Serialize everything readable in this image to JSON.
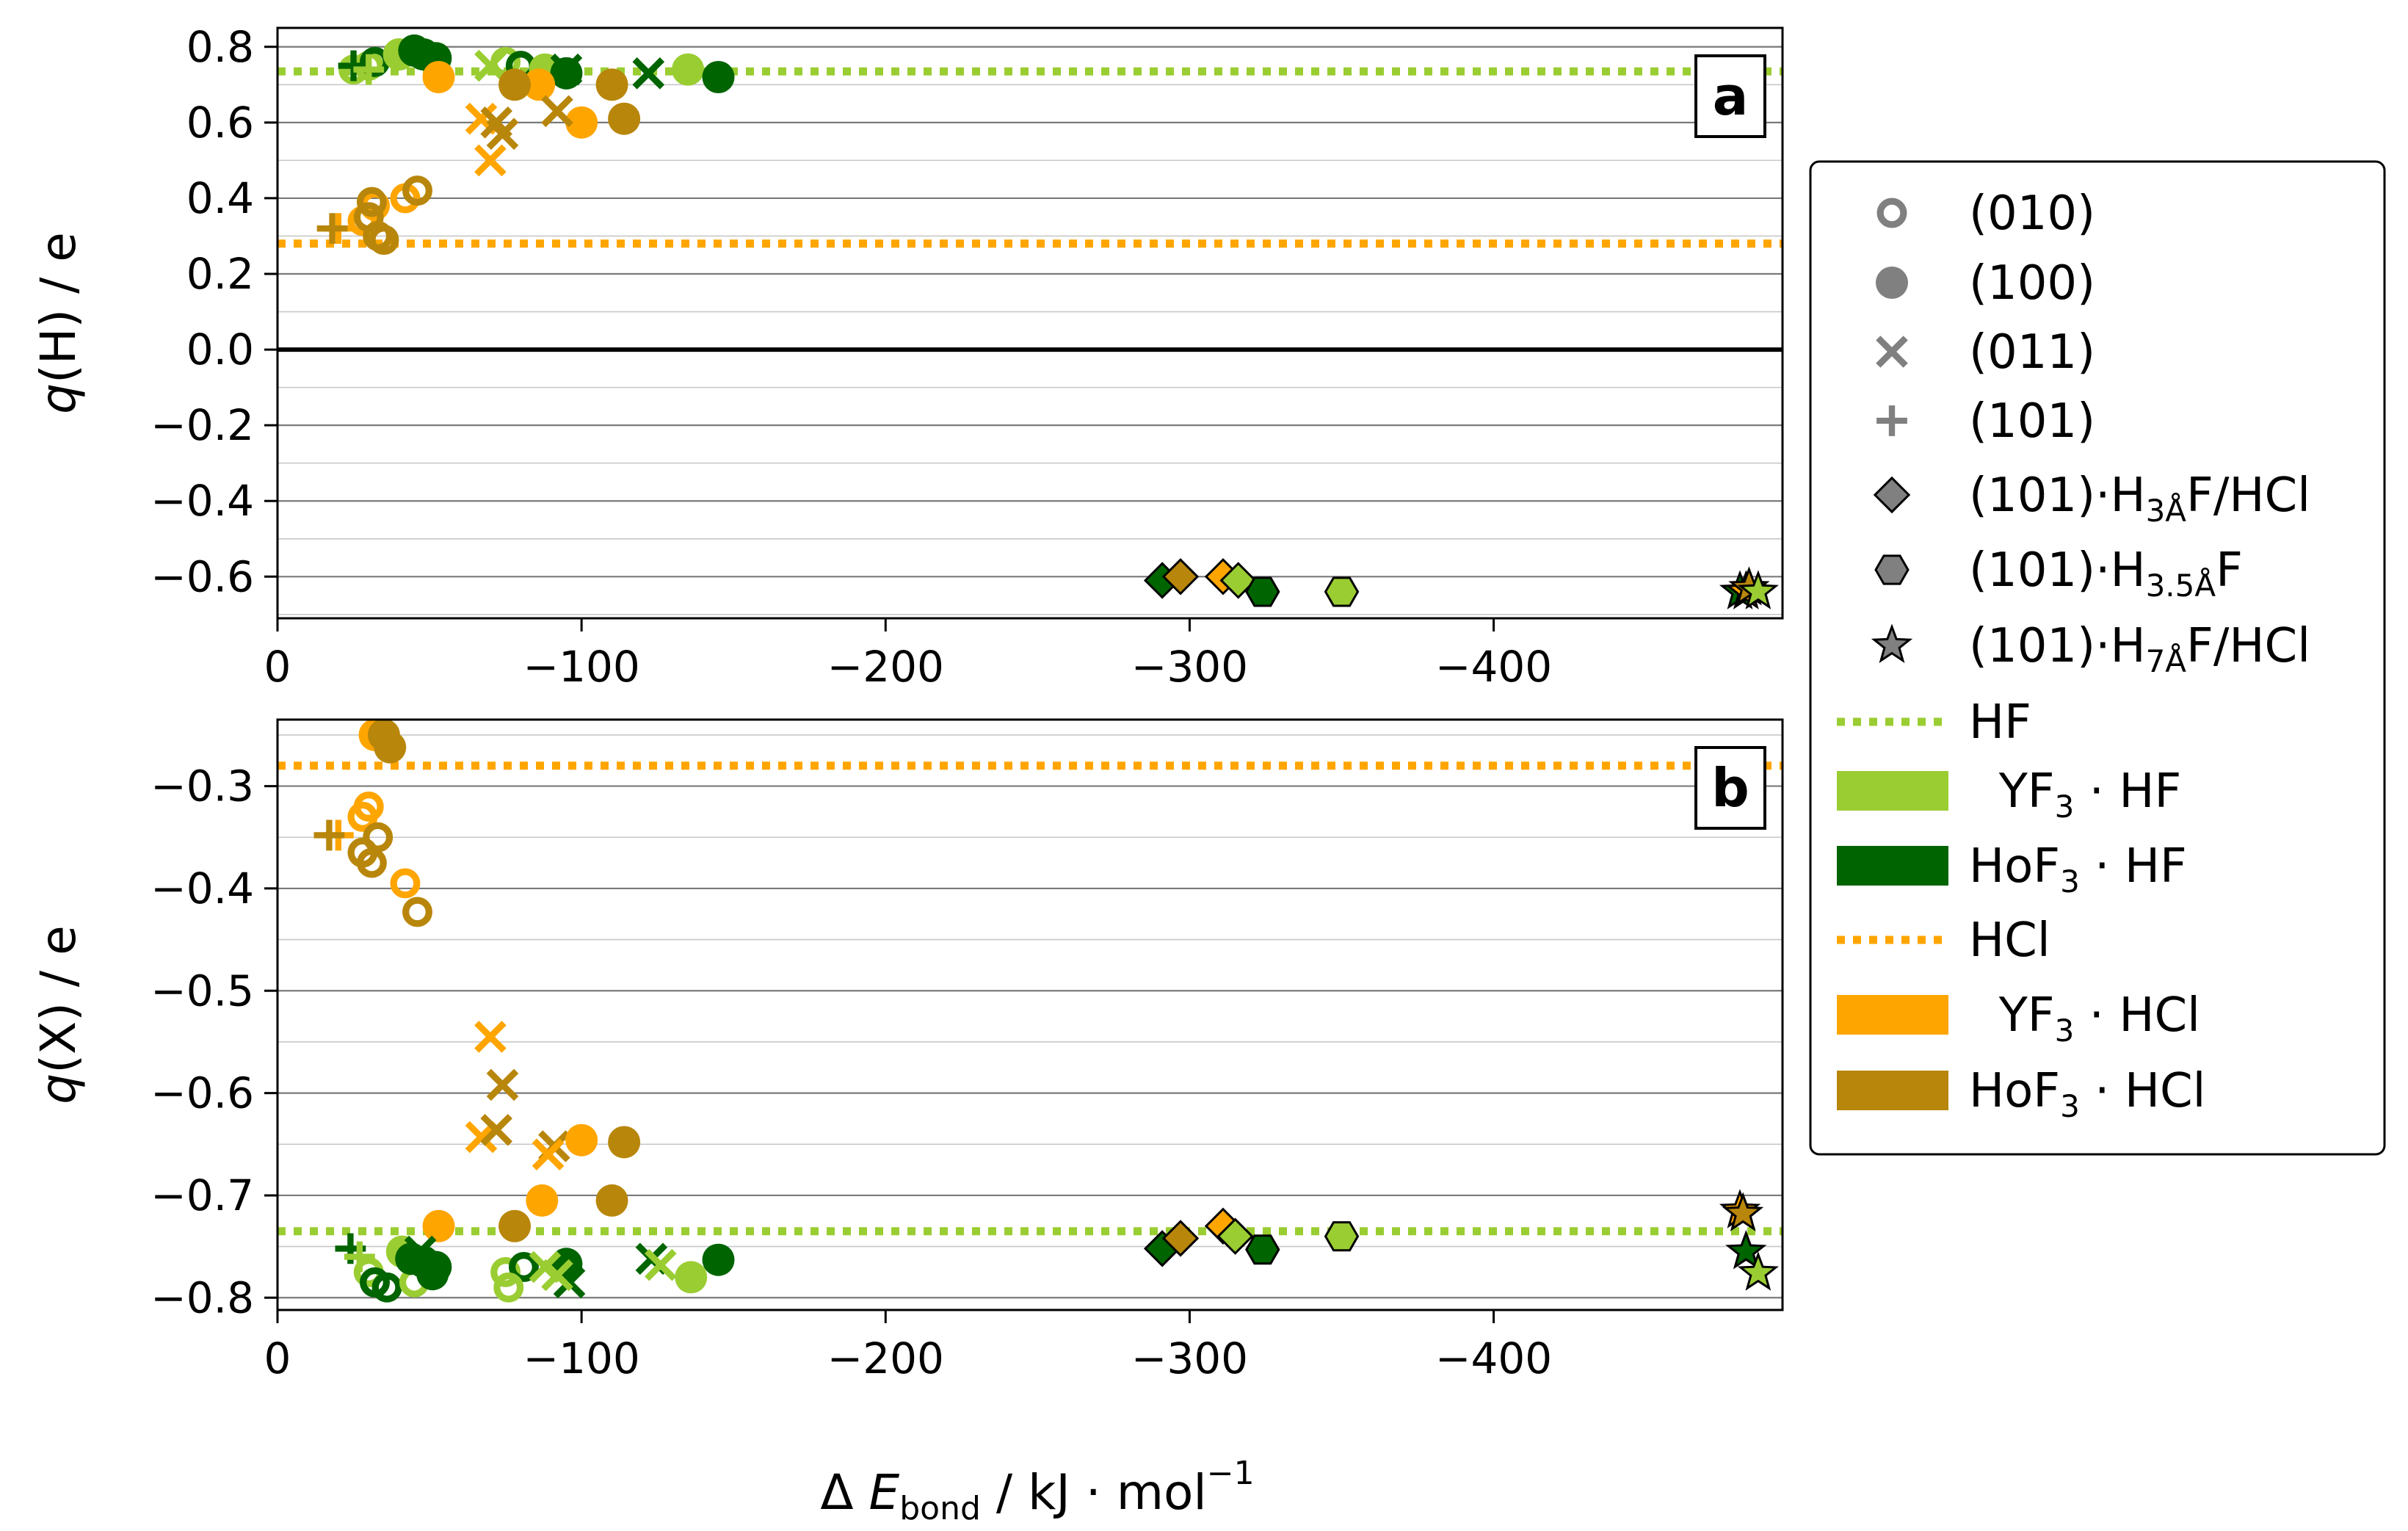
{
  "chart_data": [
    {
      "panel": "a",
      "type": "scatter",
      "ylabel_var": "q",
      "ylabel_rest": "(H) / e",
      "xlim": [
        0,
        -495
      ],
      "ylim": [
        -0.71,
        0.85
      ],
      "xticks": [
        0,
        -100,
        -200,
        -300,
        -400
      ],
      "xtick_labels": [
        "0",
        "−100",
        "−200",
        "−300",
        "−400"
      ],
      "yticks": [
        0.8,
        0.6,
        0.4,
        0.2,
        0.0,
        -0.2,
        -0.4,
        -0.6
      ],
      "ytick_labels": [
        "0.8",
        "0.6",
        "0.4",
        "0.2",
        "0.0",
        "−0.2",
        "−0.4",
        "−0.6"
      ],
      "minor_step": 0.1,
      "zero_line": 0.0,
      "reference_lines": [
        {
          "name": "HF",
          "y": 0.735,
          "color": "#9acd32"
        },
        {
          "name": "HCl",
          "y": 0.28,
          "color": "#ffa500"
        }
      ],
      "points": [
        {
          "m": "o",
          "c": "yf3_hf",
          "x": -25,
          "y": 0.74
        },
        {
          "m": "o",
          "c": "yf3_hf",
          "x": -30,
          "y": 0.75
        },
        {
          "m": "o",
          "c": "yf3_hf",
          "x": -75,
          "y": 0.76
        },
        {
          "m": "o",
          "c": "hof3_hf",
          "x": -32,
          "y": 0.76
        },
        {
          "m": "o",
          "c": "hof3_hf",
          "x": -80,
          "y": 0.75
        },
        {
          "m": "d",
          "c": "yf3_hf",
          "x": -40,
          "y": 0.78
        },
        {
          "m": "d",
          "c": "yf3_hf",
          "x": -135,
          "y": 0.74
        },
        {
          "m": "d",
          "c": "yf3_hf",
          "x": -88,
          "y": 0.74
        },
        {
          "m": "d",
          "c": "hof3_hf",
          "x": -45,
          "y": 0.79
        },
        {
          "m": "d",
          "c": "hof3_hf",
          "x": -48,
          "y": 0.78
        },
        {
          "m": "d",
          "c": "hof3_hf",
          "x": -52,
          "y": 0.77
        },
        {
          "m": "d",
          "c": "hof3_hf",
          "x": -95,
          "y": 0.73
        },
        {
          "m": "d",
          "c": "hof3_hf",
          "x": -145,
          "y": 0.72
        },
        {
          "m": "x",
          "c": "hof3_hf",
          "x": -95,
          "y": 0.74
        },
        {
          "m": "x",
          "c": "hof3_hf",
          "x": -122,
          "y": 0.73
        },
        {
          "m": "x",
          "c": "yf3_hf",
          "x": -70,
          "y": 0.75
        },
        {
          "m": "p",
          "c": "hof3_hf",
          "x": -25,
          "y": 0.75
        },
        {
          "m": "p",
          "c": "yf3_hf",
          "x": -30,
          "y": 0.74
        },
        {
          "m": "d",
          "c": "yf3_hcl",
          "x": -53,
          "y": 0.72
        },
        {
          "m": "d",
          "c": "yf3_hcl",
          "x": -86,
          "y": 0.7
        },
        {
          "m": "d",
          "c": "yf3_hcl",
          "x": -100,
          "y": 0.6
        },
        {
          "m": "d",
          "c": "hof3_hcl",
          "x": -78,
          "y": 0.7
        },
        {
          "m": "d",
          "c": "hof3_hcl",
          "x": -110,
          "y": 0.7
        },
        {
          "m": "d",
          "c": "hof3_hcl",
          "x": -114,
          "y": 0.61
        },
        {
          "m": "x",
          "c": "yf3_hcl",
          "x": -67,
          "y": 0.61
        },
        {
          "m": "x",
          "c": "yf3_hcl",
          "x": -70,
          "y": 0.5
        },
        {
          "m": "x",
          "c": "hof3_hcl",
          "x": -72,
          "y": 0.6
        },
        {
          "m": "x",
          "c": "hof3_hcl",
          "x": -74,
          "y": 0.57
        },
        {
          "m": "x",
          "c": "hof3_hcl",
          "x": -92,
          "y": 0.63
        },
        {
          "m": "o",
          "c": "yf3_hcl",
          "x": -28,
          "y": 0.34
        },
        {
          "m": "o",
          "c": "yf3_hcl",
          "x": -32,
          "y": 0.38
        },
        {
          "m": "o",
          "c": "yf3_hcl",
          "x": -42,
          "y": 0.4
        },
        {
          "m": "o",
          "c": "hof3_hcl",
          "x": -30,
          "y": 0.35
        },
        {
          "m": "o",
          "c": "hof3_hcl",
          "x": -33,
          "y": 0.3
        },
        {
          "m": "o",
          "c": "hof3_hcl",
          "x": -35,
          "y": 0.29
        },
        {
          "m": "o",
          "c": "hof3_hcl",
          "x": -46,
          "y": 0.42
        },
        {
          "m": "o",
          "c": "hof3_hcl",
          "x": -31,
          "y": 0.39
        },
        {
          "m": "p",
          "c": "yf3_hcl",
          "x": -20,
          "y": 0.32
        },
        {
          "m": "p",
          "c": "hof3_hcl",
          "x": -18,
          "y": 0.32
        },
        {
          "m": "D",
          "c": "hof3_hf",
          "x": -291,
          "y": -0.61
        },
        {
          "m": "D",
          "c": "hof3_hcl",
          "x": -297,
          "y": -0.6
        },
        {
          "m": "D",
          "c": "yf3_hcl",
          "x": -311,
          "y": -0.6
        },
        {
          "m": "D",
          "c": "yf3_hf",
          "x": -316,
          "y": -0.61
        },
        {
          "m": "h",
          "c": "hof3_hf",
          "x": -324,
          "y": -0.64
        },
        {
          "m": "h",
          "c": "yf3_hf",
          "x": -350,
          "y": -0.64
        },
        {
          "m": "*",
          "c": "hof3_hf",
          "x": -481,
          "y": -0.64
        },
        {
          "m": "*",
          "c": "yf3_hcl",
          "x": -483,
          "y": -0.64
        },
        {
          "m": "*",
          "c": "hof3_hcl",
          "x": -484,
          "y": -0.63
        },
        {
          "m": "*",
          "c": "yf3_hf",
          "x": -487,
          "y": -0.64
        }
      ]
    },
    {
      "panel": "b",
      "type": "scatter",
      "ylabel_var": "q",
      "ylabel_rest": "(X) / e",
      "xlabel": {
        "delta": "Δ",
        "E": "E",
        "sub": "bond",
        "rest": " / kJ · mol",
        "sup": "−1"
      },
      "xlim": [
        0,
        -495
      ],
      "ylim": [
        -0.812,
        -0.235
      ],
      "xticks": [
        0,
        -100,
        -200,
        -300,
        -400
      ],
      "xtick_labels": [
        "0",
        "−100",
        "−200",
        "−300",
        "−400"
      ],
      "yticks": [
        -0.3,
        -0.4,
        -0.5,
        -0.6,
        -0.7,
        -0.8
      ],
      "ytick_labels": [
        "−0.3",
        "−0.4",
        "−0.5",
        "−0.6",
        "−0.7",
        "−0.8"
      ],
      "minor_step": 0.05,
      "reference_lines": [
        {
          "name": "HCl",
          "y": -0.28,
          "color": "#ffa500"
        },
        {
          "name": "HF",
          "y": -0.735,
          "color": "#9acd32"
        }
      ],
      "points": [
        {
          "m": "d",
          "c": "yf3_hcl",
          "x": -32,
          "y": -0.25
        },
        {
          "m": "d",
          "c": "hof3_hcl",
          "x": -35,
          "y": -0.25
        },
        {
          "m": "d",
          "c": "hof3_hcl",
          "x": -37,
          "y": -0.262
        },
        {
          "m": "o",
          "c": "yf3_hcl",
          "x": -28,
          "y": -0.33
        },
        {
          "m": "o",
          "c": "yf3_hcl",
          "x": -30,
          "y": -0.32
        },
        {
          "m": "o",
          "c": "hof3_hcl",
          "x": -33,
          "y": -0.35
        },
        {
          "m": "o",
          "c": "hof3_hcl",
          "x": -28,
          "y": -0.365
        },
        {
          "m": "o",
          "c": "hof3_hcl",
          "x": -31,
          "y": -0.375
        },
        {
          "m": "o",
          "c": "yf3_hcl",
          "x": -42,
          "y": -0.395
        },
        {
          "m": "o",
          "c": "hof3_hcl",
          "x": -46,
          "y": -0.423
        },
        {
          "m": "p",
          "c": "yf3_hcl",
          "x": -20,
          "y": -0.348
        },
        {
          "m": "p",
          "c": "hof3_hcl",
          "x": -17,
          "y": -0.348
        },
        {
          "m": "x",
          "c": "yf3_hcl",
          "x": -70,
          "y": -0.545
        },
        {
          "m": "x",
          "c": "hof3_hcl",
          "x": -74,
          "y": -0.592
        },
        {
          "m": "x",
          "c": "yf3_hcl",
          "x": -67,
          "y": -0.643
        },
        {
          "m": "x",
          "c": "hof3_hcl",
          "x": -72,
          "y": -0.636
        },
        {
          "m": "x",
          "c": "hof3_hcl",
          "x": -91,
          "y": -0.652
        },
        {
          "m": "x",
          "c": "yf3_hcl",
          "x": -89,
          "y": -0.66
        },
        {
          "m": "d",
          "c": "yf3_hcl",
          "x": -100,
          "y": -0.646
        },
        {
          "m": "d",
          "c": "hof3_hcl",
          "x": -114,
          "y": -0.648
        },
        {
          "m": "d",
          "c": "yf3_hcl",
          "x": -87,
          "y": -0.705
        },
        {
          "m": "d",
          "c": "hof3_hcl",
          "x": -110,
          "y": -0.705
        },
        {
          "m": "d",
          "c": "hof3_hcl",
          "x": -78,
          "y": -0.73
        },
        {
          "m": "d",
          "c": "yf3_hcl",
          "x": -53,
          "y": -0.73
        },
        {
          "m": "p",
          "c": "hof3_hf",
          "x": -24,
          "y": -0.752
        },
        {
          "m": "p",
          "c": "yf3_hf",
          "x": -27,
          "y": -0.76
        },
        {
          "m": "o",
          "c": "yf3_hf",
          "x": -30,
          "y": -0.775
        },
        {
          "m": "o",
          "c": "hof3_hf",
          "x": -32,
          "y": -0.785
        },
        {
          "m": "o",
          "c": "hof3_hf",
          "x": -36,
          "y": -0.79
        },
        {
          "m": "o",
          "c": "yf3_hf",
          "x": -45,
          "y": -0.785
        },
        {
          "m": "o",
          "c": "yf3_hf",
          "x": -75,
          "y": -0.775
        },
        {
          "m": "o",
          "c": "hof3_hf",
          "x": -81,
          "y": -0.77
        },
        {
          "m": "o",
          "c": "yf3_hf",
          "x": -76,
          "y": -0.79
        },
        {
          "m": "d",
          "c": "yf3_hf",
          "x": -41,
          "y": -0.755
        },
        {
          "m": "d",
          "c": "hof3_hf",
          "x": -44,
          "y": -0.762
        },
        {
          "m": "d",
          "c": "hof3_hf",
          "x": -48,
          "y": -0.765
        },
        {
          "m": "d",
          "c": "hof3_hf",
          "x": -52,
          "y": -0.77
        },
        {
          "m": "d",
          "c": "hof3_hf",
          "x": -51,
          "y": -0.777
        },
        {
          "m": "d",
          "c": "hof3_hf",
          "x": -95,
          "y": -0.767
        },
        {
          "m": "d",
          "c": "yf3_hf",
          "x": -136,
          "y": -0.78
        },
        {
          "m": "d",
          "c": "hof3_hf",
          "x": -145,
          "y": -0.763
        },
        {
          "m": "x",
          "c": "hof3_hf",
          "x": -47,
          "y": -0.755
        },
        {
          "m": "x",
          "c": "yf3_hf",
          "x": -88,
          "y": -0.77
        },
        {
          "m": "x",
          "c": "hof3_hf",
          "x": -96,
          "y": -0.785
        },
        {
          "m": "x",
          "c": "yf3_hf",
          "x": -92,
          "y": -0.778
        },
        {
          "m": "x",
          "c": "hof3_hf",
          "x": -123,
          "y": -0.762
        },
        {
          "m": "x",
          "c": "yf3_hf",
          "x": -126,
          "y": -0.768
        },
        {
          "m": "D",
          "c": "hof3_hf",
          "x": -291,
          "y": -0.752
        },
        {
          "m": "D",
          "c": "hof3_hcl",
          "x": -297,
          "y": -0.742
        },
        {
          "m": "D",
          "c": "yf3_hcl",
          "x": -311,
          "y": -0.73
        },
        {
          "m": "D",
          "c": "yf3_hf",
          "x": -315,
          "y": -0.74
        },
        {
          "m": "h",
          "c": "hof3_hf",
          "x": -324,
          "y": -0.753
        },
        {
          "m": "h",
          "c": "yf3_hf",
          "x": -350,
          "y": -0.74
        },
        {
          "m": "*",
          "c": "yf3_hcl",
          "x": -481,
          "y": -0.715
        },
        {
          "m": "*",
          "c": "hof3_hcl",
          "x": -482,
          "y": -0.718
        },
        {
          "m": "*",
          "c": "hof3_hf",
          "x": -483,
          "y": -0.755
        },
        {
          "m": "*",
          "c": "yf3_hf",
          "x": -487,
          "y": -0.776
        }
      ]
    }
  ],
  "colors": {
    "yf3_hf": "#9acd32",
    "hof3_hf": "#006400",
    "yf3_hcl": "#ffa500",
    "hof3_hcl": "#b8860b",
    "legend_marker": "#808080"
  },
  "legend": {
    "items": [
      {
        "kind": "marker",
        "marker": "o",
        "text": "(010)"
      },
      {
        "kind": "marker",
        "marker": "d",
        "text": "(100)"
      },
      {
        "kind": "marker",
        "marker": "x",
        "text": "(011)"
      },
      {
        "kind": "marker",
        "marker": "p",
        "text": "(101)"
      },
      {
        "kind": "marker",
        "marker": "D",
        "text": "(101)·H",
        "sub": "3Å",
        "text2": "F/HCl"
      },
      {
        "kind": "marker",
        "marker": "h",
        "text": "(101)·H",
        "sub": "3.5Å",
        "text2": "F"
      },
      {
        "kind": "marker",
        "marker": "*",
        "text": "(101)·H",
        "sub": "7Å",
        "text2": "F/HCl"
      },
      {
        "kind": "dotted",
        "color": "#9acd32",
        "text": "HF"
      },
      {
        "kind": "patch",
        "color": "#9acd32",
        "text": "  YF",
        "sub": "3",
        "text2": " · HF"
      },
      {
        "kind": "patch",
        "color": "#006400",
        "text": "HoF",
        "sub": "3",
        "text2": " · HF"
      },
      {
        "kind": "dotted",
        "color": "#ffa500",
        "text": "HCl"
      },
      {
        "kind": "patch",
        "color": "#ffa500",
        "text": "  YF",
        "sub": "3",
        "text2": " · HCl"
      },
      {
        "kind": "patch",
        "color": "#b8860b",
        "text": "HoF",
        "sub": "3",
        "text2": " · HCl"
      }
    ]
  }
}
